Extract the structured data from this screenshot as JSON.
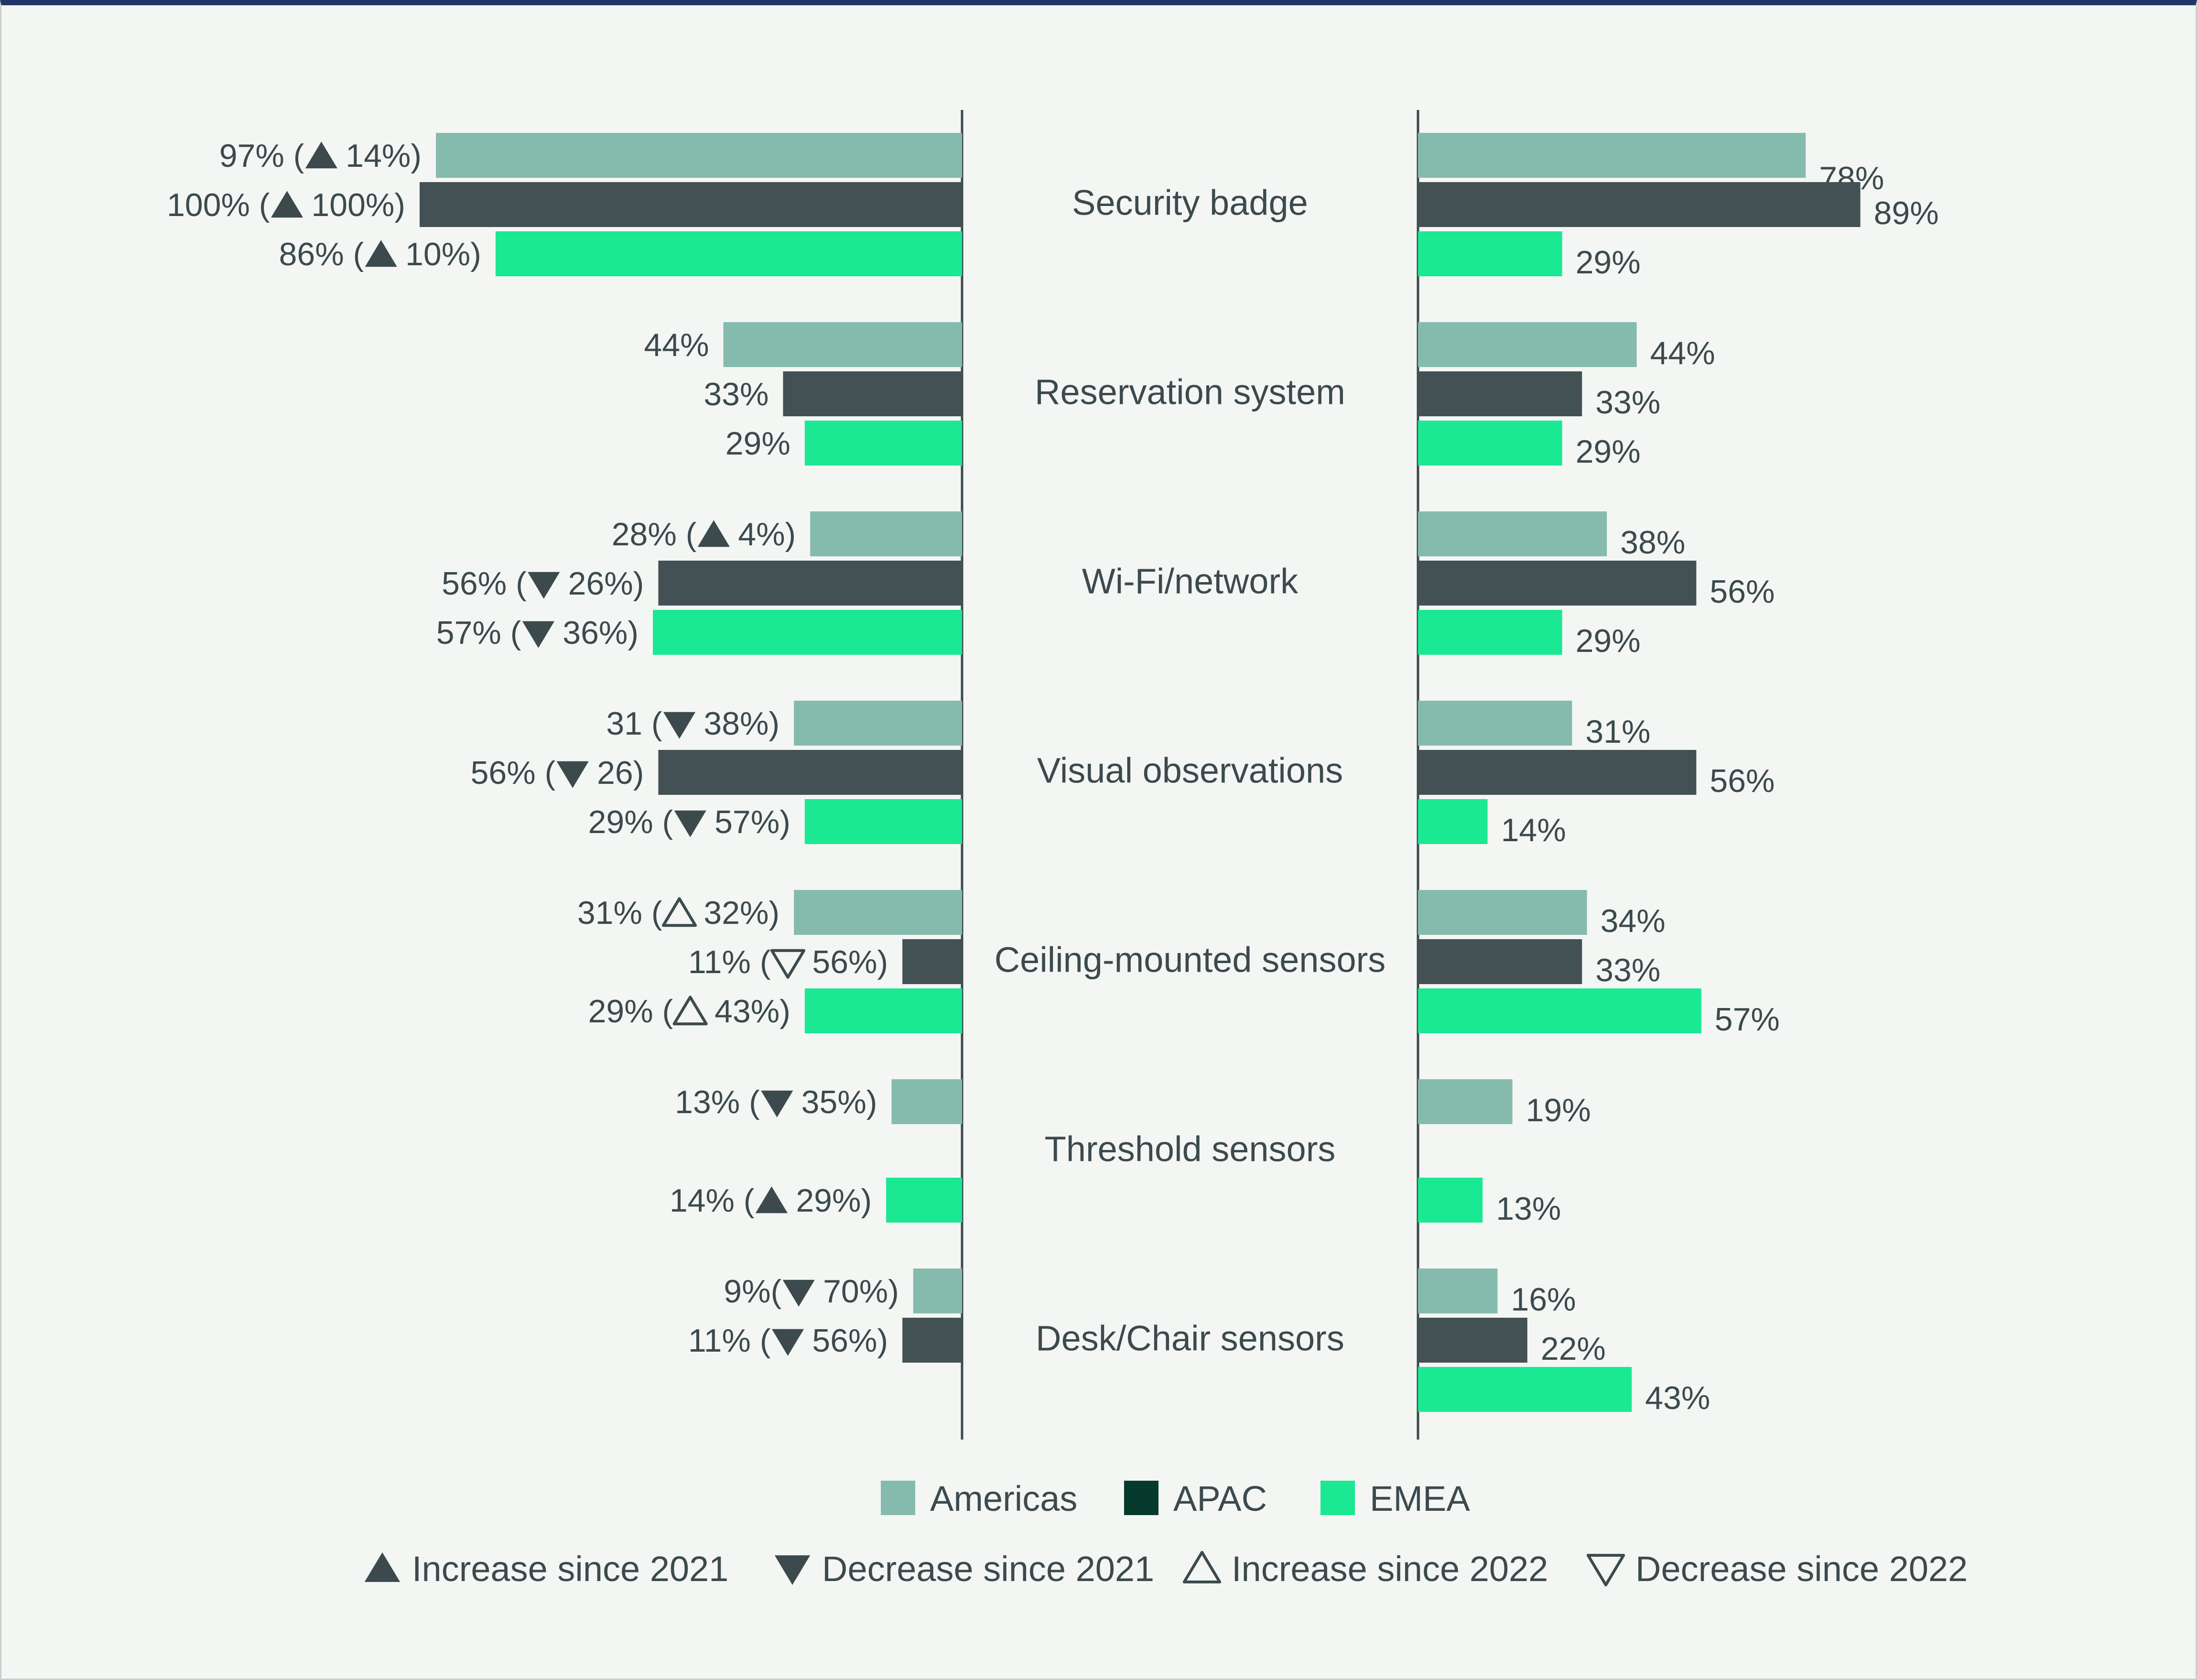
{
  "chart_data": {
    "type": "bar",
    "orientation": "horizontal",
    "layout": "two-panel butterfly",
    "categories": [
      "Security badge",
      "Reservation system",
      "Wi-Fi/network",
      "Visual observations",
      "Ceiling-mounted sensors",
      "Threshold sensors",
      "Desk/Chair sensors"
    ],
    "series_names": [
      "Americas",
      "APAC",
      "EMEA"
    ],
    "colors": {
      "Americas": "#85bbad",
      "APAC": "#435155",
      "EMEA": "#1ae893",
      "legend_apac_swatch": "#063a2c",
      "text": "#3c4a4e"
    },
    "left_panel": {
      "values": {
        "Americas": [
          97,
          44,
          28,
          31,
          31,
          13,
          9
        ],
        "APAC": [
          100,
          33,
          56,
          56,
          11,
          null,
          11
        ],
        "EMEA": [
          86,
          29,
          57,
          29,
          29,
          14,
          null
        ]
      },
      "labels": {
        "Americas": [
          "97% (",
          "44%",
          "28% (",
          "31 (",
          "31% (",
          "13% (",
          "9%("
        ],
        "APAC": [
          "100% (",
          "33%",
          "56% (",
          "56% (",
          "11% (",
          "",
          "11% ("
        ],
        "EMEA": [
          "86% (",
          "29%",
          "57% (",
          "29% (",
          "29% (",
          "14% (",
          ""
        ]
      },
      "changes": {
        "Americas": [
          "14%)",
          "",
          "4%)",
          "38%)",
          "32%)",
          "35%)",
          "70%)"
        ],
        "APAC": [
          "100%)",
          "",
          "26%)",
          "26)",
          "56%)",
          "",
          "56%)"
        ],
        "EMEA": [
          "10%)",
          "",
          "36%)",
          "57%)",
          "43%)",
          "29%)",
          ""
        ]
      },
      "markers": {
        "Americas": [
          "up-filled",
          "",
          "up-filled",
          "down-filled",
          "up-outline",
          "down-filled",
          "down-filled"
        ],
        "APAC": [
          "up-filled",
          "",
          "down-filled",
          "down-filled",
          "down-outline",
          "",
          "down-filled"
        ],
        "EMEA": [
          "up-filled",
          "",
          "down-filled",
          "down-filled",
          "up-outline",
          "up-filled",
          ""
        ]
      },
      "xlim": [
        0,
        100
      ]
    },
    "right_panel": {
      "values": {
        "Americas": [
          78,
          44,
          38,
          31,
          34,
          19,
          16
        ],
        "APAC": [
          89,
          33,
          56,
          56,
          33,
          null,
          22
        ],
        "EMEA": [
          29,
          29,
          29,
          14,
          57,
          13,
          43
        ]
      },
      "labels": {
        "Americas": [
          "78%",
          "44%",
          "38%",
          "31%",
          "34%",
          "19%",
          "16%"
        ],
        "APAC": [
          "89%",
          "33%",
          "56%",
          "56%",
          "33%",
          "",
          "22%"
        ],
        "EMEA": [
          "29%",
          "29%",
          "29%",
          "14%",
          "57%",
          "13%",
          "43%"
        ]
      },
      "xlim": [
        0,
        100
      ]
    },
    "legend": {
      "series": [
        "Americas",
        "APAC",
        "EMEA"
      ],
      "markers": [
        {
          "shape": "up-filled",
          "label": "Increase since 2021"
        },
        {
          "shape": "down-filled",
          "label": "Decrease since 2021"
        },
        {
          "shape": "up-outline",
          "label": "Increase since 2022"
        },
        {
          "shape": "down-outline",
          "label": "Decrease since 2022"
        }
      ],
      "position": "bottom-center"
    }
  }
}
